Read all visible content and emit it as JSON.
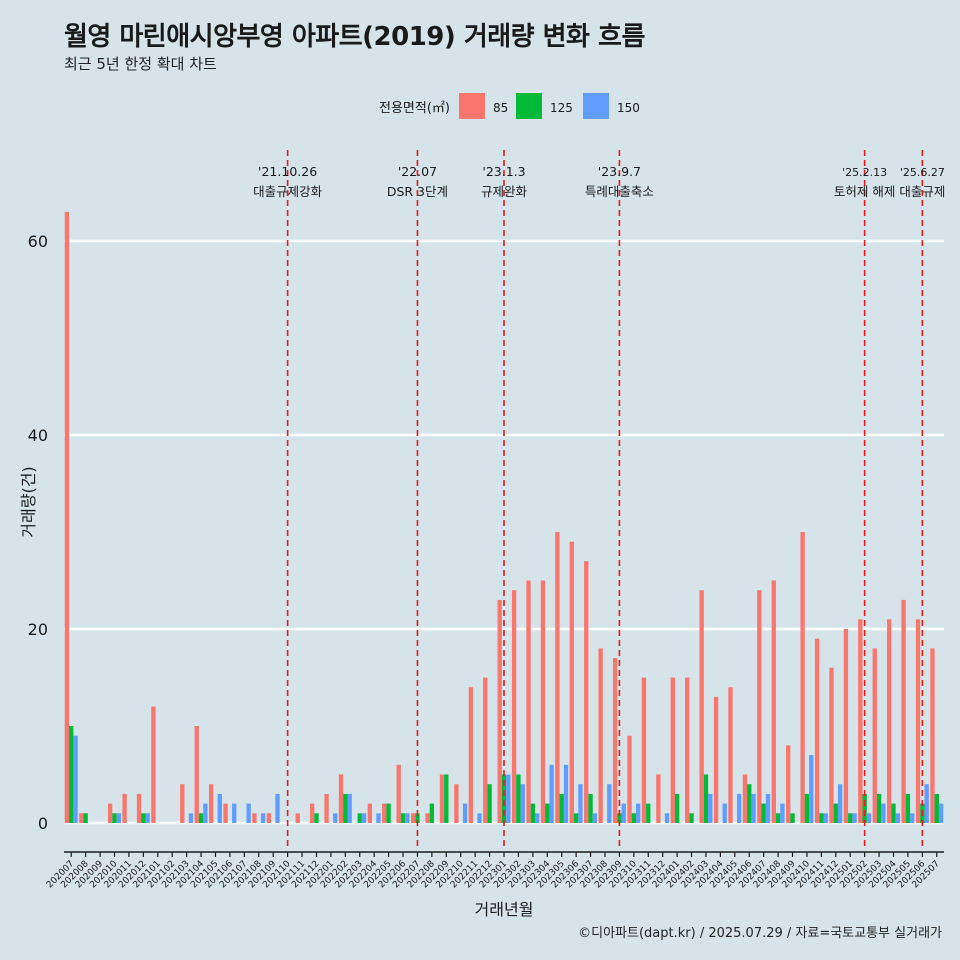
{
  "header": {
    "title": "월영 마린애시앙부영 아파트(2019) 거래량 변화 흐름",
    "subtitle": "최근 5년 한정 확대 차트"
  },
  "caption": "©디아파트(dapt.kr) / 2025.07.29 / 자료=국토교통부 실거래가",
  "chart_data": {
    "type": "bar",
    "xlabel": "거래년월",
    "ylabel": "거래량(건)",
    "ylim": [
      0,
      63
    ],
    "yticks": [
      0,
      20,
      40,
      60
    ],
    "grid": true,
    "legend": {
      "title": "전용면적(㎡)",
      "position": "top",
      "entries": [
        "85",
        "125",
        "150"
      ]
    },
    "colors": {
      "85": "#f8766d",
      "125": "#00ba38",
      "150": "#619cff",
      "event_line": "#e41a1c"
    },
    "categories": [
      "202007",
      "202008",
      "202009",
      "202010",
      "202011",
      "202012",
      "202101",
      "202102",
      "202103",
      "202104",
      "202105",
      "202106",
      "202107",
      "202108",
      "202109",
      "202110",
      "202111",
      "202112",
      "202201",
      "202202",
      "202203",
      "202204",
      "202205",
      "202206",
      "202207",
      "202208",
      "202209",
      "202210",
      "202211",
      "202212",
      "202301",
      "202302",
      "202303",
      "202304",
      "202305",
      "202306",
      "202307",
      "202308",
      "202309",
      "202310",
      "202311",
      "202312",
      "202401",
      "202402",
      "202403",
      "202404",
      "202405",
      "202406",
      "202407",
      "202408",
      "202409",
      "202410",
      "202411",
      "202412",
      "202501",
      "202502",
      "202503",
      "202504",
      "202505",
      "202506",
      "202507"
    ],
    "series": [
      {
        "name": "85",
        "values": [
          63,
          1,
          0,
          2,
          3,
          3,
          12,
          0,
          4,
          10,
          4,
          2,
          0,
          1,
          1,
          0,
          1,
          2,
          3,
          5,
          0,
          2,
          2,
          6,
          1,
          1,
          5,
          4,
          14,
          15,
          23,
          24,
          25,
          25,
          30,
          29,
          27,
          18,
          17,
          9,
          15,
          5,
          15,
          15,
          24,
          13,
          14,
          5,
          24,
          25,
          8,
          30,
          19,
          16,
          20,
          21,
          18,
          21,
          23,
          21,
          18
        ]
      },
      {
        "name": "125",
        "values": [
          10,
          1,
          0,
          1,
          0,
          1,
          0,
          0,
          0,
          1,
          0,
          0,
          0,
          0,
          0,
          0,
          0,
          1,
          0,
          3,
          1,
          0,
          2,
          1,
          1,
          2,
          5,
          0,
          0,
          4,
          5,
          5,
          2,
          2,
          3,
          1,
          3,
          0,
          1,
          1,
          2,
          0,
          3,
          1,
          5,
          0,
          0,
          4,
          2,
          1,
          1,
          3,
          1,
          2,
          1,
          3,
          3,
          2,
          3,
          2,
          3
        ]
      },
      {
        "name": "150",
        "values": [
          9,
          0,
          0,
          1,
          0,
          1,
          0,
          0,
          1,
          2,
          3,
          2,
          2,
          1,
          3,
          0,
          0,
          0,
          1,
          3,
          1,
          1,
          0,
          1,
          0,
          0,
          0,
          2,
          1,
          0,
          5,
          4,
          1,
          6,
          6,
          4,
          1,
          4,
          2,
          2,
          0,
          1,
          0,
          0,
          3,
          2,
          3,
          3,
          3,
          2,
          0,
          7,
          1,
          4,
          1,
          1,
          2,
          1,
          1,
          4,
          2
        ]
      }
    ],
    "events": [
      {
        "category": "202110",
        "date": "'21.10.26",
        "label": "대출규제강화"
      },
      {
        "category": "202207",
        "date": "'22.07",
        "label": "DSR 3단계"
      },
      {
        "category": "202301",
        "date": "'23.1.3",
        "label": "규제완화"
      },
      {
        "category": "202309",
        "date": "'23.9.7",
        "label": "특례대출축소"
      },
      {
        "category": "202502",
        "date": "'25.2.13",
        "label": "토허제 해제"
      },
      {
        "category": "202506",
        "date": "'25.6.27",
        "label": "대출규제"
      }
    ]
  }
}
